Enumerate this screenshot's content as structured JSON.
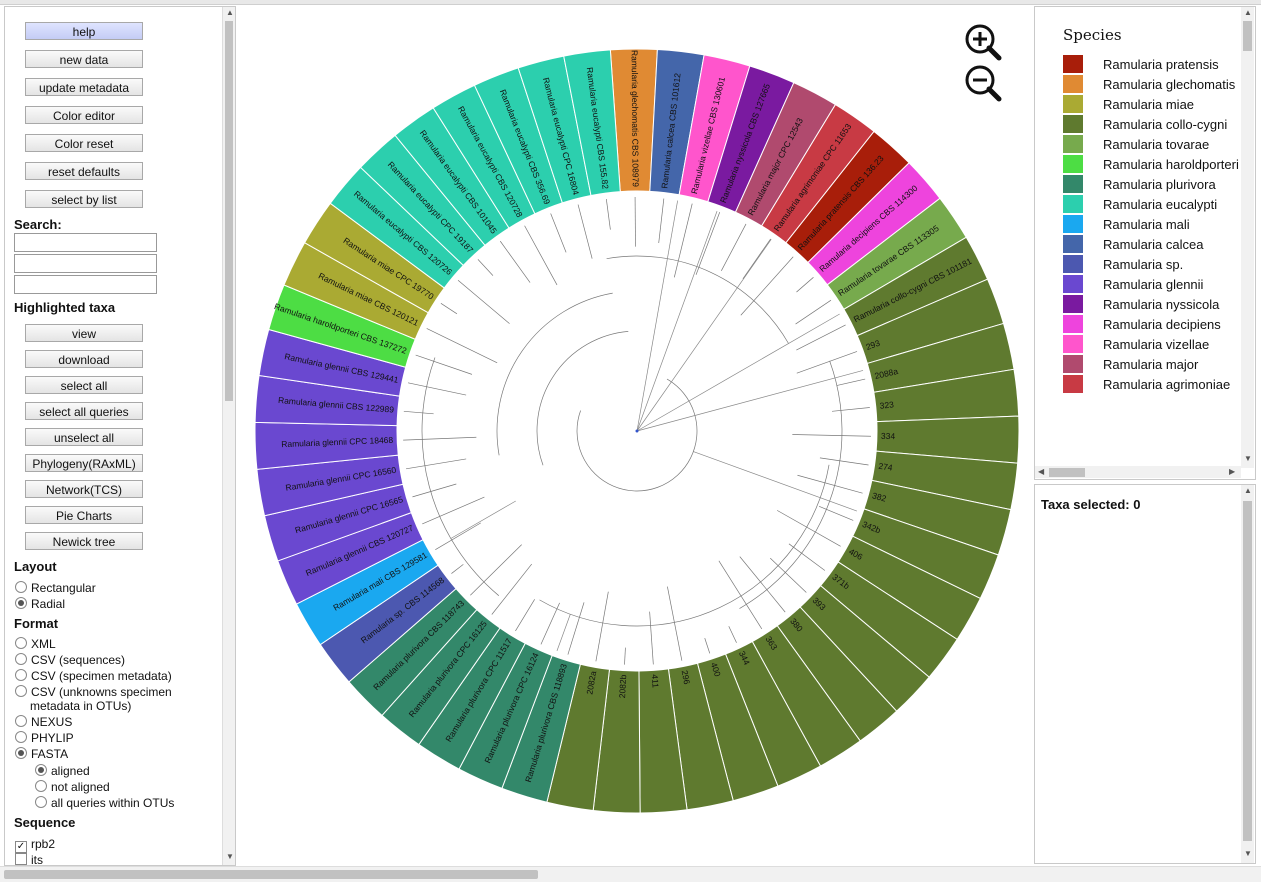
{
  "buttons_top": [
    "help",
    "new data",
    "update metadata",
    "Color editor",
    "Color reset",
    "reset defaults",
    "select by list"
  ],
  "search_label": "Search:",
  "highlighted_label": "Highlighted taxa",
  "buttons_highlight": [
    "view",
    "download",
    "select all",
    "select all queries",
    "unselect all",
    "Phylogeny(RAxML)",
    "Network(TCS)",
    "Pie Charts",
    "Newick tree"
  ],
  "layout": {
    "label": "Layout",
    "options": [
      {
        "label": "Rectangular",
        "checked": false
      },
      {
        "label": "Radial",
        "checked": true
      }
    ]
  },
  "format": {
    "label": "Format",
    "options": [
      {
        "label": "XML",
        "checked": false
      },
      {
        "label": "CSV (sequences)",
        "checked": false
      },
      {
        "label": "CSV (specimen metadata)",
        "checked": false
      },
      {
        "label": "CSV (unknowns specimen",
        "label2": "metadata in OTUs)",
        "checked": false
      },
      {
        "label": "NEXUS",
        "checked": false
      },
      {
        "label": "PHYLIP",
        "checked": false
      },
      {
        "label": "FASTA",
        "checked": true
      }
    ],
    "fasta_options": [
      {
        "label": "aligned",
        "checked": true
      },
      {
        "label": "not aligned",
        "checked": false
      },
      {
        "label": "all queries within OTUs",
        "checked": false
      }
    ]
  },
  "sequence": {
    "label": "Sequence",
    "options": [
      {
        "label": "rpb2",
        "checked": true
      },
      {
        "label": "its",
        "checked": false
      }
    ]
  },
  "legend": {
    "title": "Species",
    "items": [
      {
        "name": "Ramularia pratensis",
        "color": "#a81e0a"
      },
      {
        "name": "Ramularia glechomatis",
        "color": "#e08a33"
      },
      {
        "name": "Ramularia miae",
        "color": "#aaaa33"
      },
      {
        "name": "Ramularia collo-cygni",
        "color": "#5f7a2f"
      },
      {
        "name": "Ramularia tovarae",
        "color": "#77aa4d"
      },
      {
        "name": "Ramularia haroldporteri",
        "color": "#4ddd44"
      },
      {
        "name": "Ramularia plurivora",
        "color": "#33886a"
      },
      {
        "name": "Ramularia eucalypti",
        "color": "#2ccfae"
      },
      {
        "name": "Ramularia mali",
        "color": "#1aa8f0"
      },
      {
        "name": "Ramularia calcea",
        "color": "#4466aa"
      },
      {
        "name": "Ramularia sp.",
        "color": "#4c58b0"
      },
      {
        "name": "Ramularia glennii",
        "color": "#6a48d0"
      },
      {
        "name": "Ramularia nyssicola",
        "color": "#7a1aa0"
      },
      {
        "name": "Ramularia decipiens",
        "color": "#ee44dd"
      },
      {
        "name": "Ramularia vizellae",
        "color": "#ff55cc"
      },
      {
        "name": "Ramularia major",
        "color": "#b04a6e"
      },
      {
        "name": "Ramularia agrimoniae",
        "color": "#c83a44"
      }
    ]
  },
  "taxa_selected": "Taxa selected: 0",
  "tree": {
    "leaves": [
      {
        "label": "Ramularia glechomatis CBS 108979",
        "sp": 1
      },
      {
        "label": "Ramularia calcea CBS 101612",
        "sp": 9
      },
      {
        "label": "Ramularia vizellae CBS 130601",
        "sp": 14
      },
      {
        "label": "Ramularia nyssicola CBS 127665",
        "sp": 12
      },
      {
        "label": "Ramularia major CPC 12543",
        "sp": 15
      },
      {
        "label": "Ramularia agrimoniae CPC 11653",
        "sp": 16
      },
      {
        "label": "Ramularia pratensis CBS 136.23",
        "sp": 0
      },
      {
        "label": "Ramularia decipiens CBS 114300",
        "sp": 13
      },
      {
        "label": "Ramularia tovarae CBS 113305",
        "sp": 4
      },
      {
        "label": "Ramularia collo-cygni CBS 101181",
        "sp": 3
      },
      {
        "label": "293",
        "sp": 3
      },
      {
        "label": "2088a",
        "sp": 3
      },
      {
        "label": "323",
        "sp": 3
      },
      {
        "label": "334",
        "sp": 3
      },
      {
        "label": "274",
        "sp": 3
      },
      {
        "label": "382",
        "sp": 3
      },
      {
        "label": "342b",
        "sp": 3
      },
      {
        "label": "406",
        "sp": 3
      },
      {
        "label": "371b",
        "sp": 3
      },
      {
        "label": "393",
        "sp": 3
      },
      {
        "label": "380",
        "sp": 3
      },
      {
        "label": "363",
        "sp": 3
      },
      {
        "label": "344",
        "sp": 3
      },
      {
        "label": "400",
        "sp": 3
      },
      {
        "label": "296",
        "sp": 3
      },
      {
        "label": "411",
        "sp": 3
      },
      {
        "label": "2082b",
        "sp": 3
      },
      {
        "label": "2082a",
        "sp": 3
      },
      {
        "label": "Ramularia plurivora CBS 118893",
        "sp": 6
      },
      {
        "label": "Ramularia plurivora CPC 16124",
        "sp": 6
      },
      {
        "label": "Ramularia plurivora CPC 11517",
        "sp": 6
      },
      {
        "label": "Ramularia plurivora CPC 16125",
        "sp": 6
      },
      {
        "label": "Ramularia plurivora CBS 118743",
        "sp": 6
      },
      {
        "label": "Ramularia sp. CBS 114568",
        "sp": 10
      },
      {
        "label": "Ramularia mali CBS 129581",
        "sp": 8
      },
      {
        "label": "Ramularia glennii CBS 120727",
        "sp": 11
      },
      {
        "label": "Ramularia glennii CPC 16565",
        "sp": 11
      },
      {
        "label": "Ramularia glennii CPC 16560",
        "sp": 11
      },
      {
        "label": "Ramularia glennii CPC 18468",
        "sp": 11
      },
      {
        "label": "Ramularia glennii CBS 122989",
        "sp": 11
      },
      {
        "label": "Ramularia glennii CBS 129441",
        "sp": 11
      },
      {
        "label": "Ramularia haroldporteri CBS 137272",
        "sp": 5
      },
      {
        "label": "Ramularia miae CBS 120121",
        "sp": 2
      },
      {
        "label": "Ramularia miae CPC 19770",
        "sp": 2
      },
      {
        "label": "Ramularia eucalypti CBS 120726",
        "sp": 7
      },
      {
        "label": "Ramularia eucalypti CPC 19187",
        "sp": 7
      },
      {
        "label": "Ramularia eucalypti CBS 101045",
        "sp": 7
      },
      {
        "label": "Ramularia eucalypti CBS 120728",
        "sp": 7
      },
      {
        "label": "Ramularia eucalypti CBS 356.69",
        "sp": 7
      },
      {
        "label": "Ramularia eucalypti CPC 16804",
        "sp": 7
      },
      {
        "label": "Ramularia eucalypti CBS 155.82",
        "sp": 7
      }
    ]
  }
}
